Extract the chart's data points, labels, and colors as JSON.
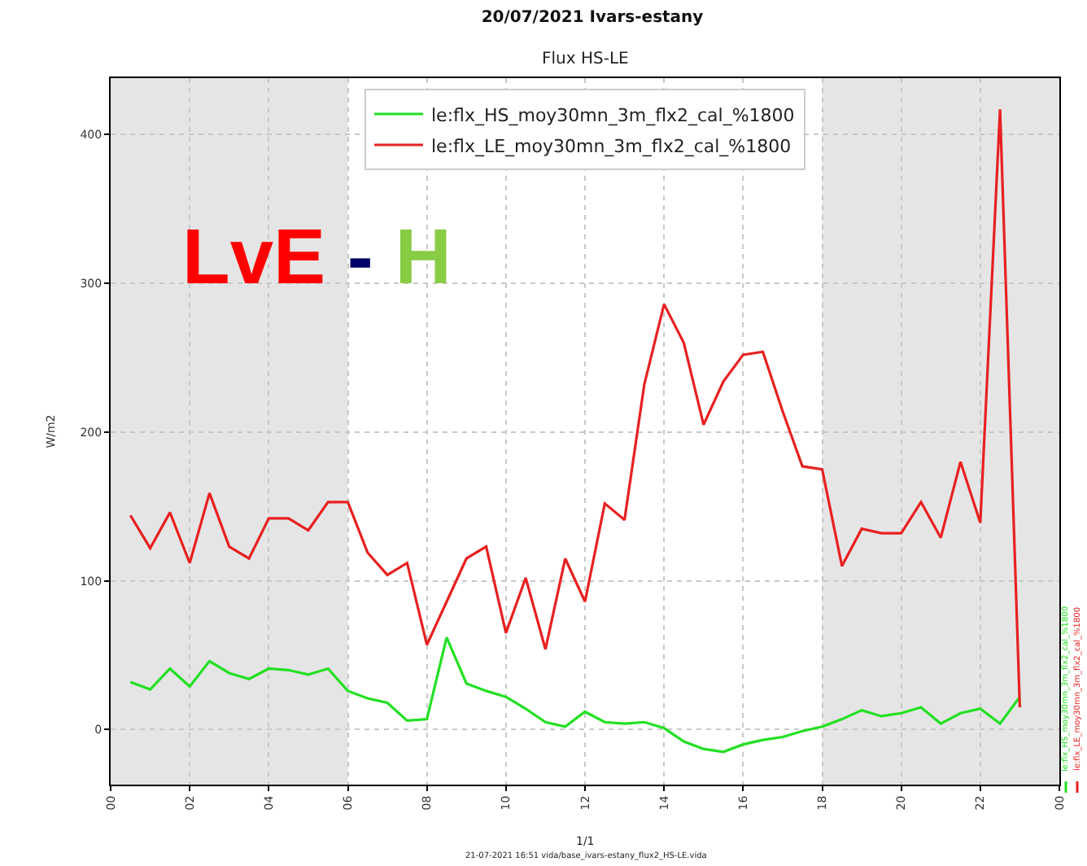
{
  "chart_data": {
    "type": "line",
    "title": "20/07/2021 Ivars-estany",
    "subtitle": "Flux HS-LE",
    "ylabel": "W/m2",
    "x": [
      0.5,
      1,
      1.5,
      2,
      2.5,
      3,
      3.5,
      4,
      4.5,
      5,
      5.5,
      6,
      6.5,
      7,
      7.5,
      8,
      8.5,
      9,
      9.5,
      10,
      10.5,
      11,
      11.5,
      12,
      12.5,
      13,
      13.5,
      14,
      14.5,
      15,
      15.5,
      16,
      16.5,
      17,
      17.5,
      18,
      18.5,
      19,
      19.5,
      20,
      20.5,
      21,
      21.5,
      22,
      22.5,
      23
    ],
    "series": [
      {
        "name": "le:flx_HS_moy30mn_3m_flx2_cal_%1800",
        "color": "#22e022",
        "values": [
          32,
          27,
          41,
          29,
          46,
          38,
          34,
          41,
          40,
          37,
          41,
          26,
          21,
          18,
          6,
          7,
          62,
          31,
          26,
          22,
          14,
          5,
          2,
          12,
          5,
          4,
          5,
          1,
          -8,
          -13,
          -15,
          -10,
          -7,
          -5,
          -1,
          2,
          7,
          13,
          9,
          11,
          15,
          4,
          11,
          14,
          4,
          22
        ]
      },
      {
        "name": "le:flx_LE_moy30mn_3m_flx2_cal_%1800",
        "color": "#e82020",
        "values": [
          144,
          122,
          146,
          112,
          159,
          123,
          115,
          142,
          142,
          134,
          153,
          153,
          119,
          104,
          112,
          57,
          86,
          115,
          123,
          65,
          102,
          54,
          115,
          86,
          152,
          141,
          232,
          286,
          260,
          205,
          234,
          252,
          254,
          214,
          177,
          175,
          110,
          135,
          132,
          132,
          153,
          129,
          180,
          139,
          417,
          15
        ]
      }
    ],
    "xlim": [
      0,
      24
    ],
    "xticks": [
      {
        "value": 0,
        "label": "00"
      },
      {
        "value": 2,
        "label": "02"
      },
      {
        "value": 4,
        "label": "04"
      },
      {
        "value": 6,
        "label": "06"
      },
      {
        "value": 8,
        "label": "08"
      },
      {
        "value": 10,
        "label": "10"
      },
      {
        "value": 12,
        "label": "12"
      },
      {
        "value": 14,
        "label": "14"
      },
      {
        "value": 16,
        "label": "16"
      },
      {
        "value": 18,
        "label": "18"
      },
      {
        "value": 20,
        "label": "20"
      },
      {
        "value": 22,
        "label": "22"
      },
      {
        "value": 24,
        "label": "00"
      }
    ],
    "ylim": [
      -37,
      438
    ],
    "yticks": [
      0,
      100,
      200,
      300,
      400
    ],
    "bands": [
      {
        "axis": "x",
        "from": 0,
        "to": 6,
        "color": "#e5e5e5"
      },
      {
        "axis": "x",
        "from": 18,
        "to": 24,
        "color": "#e5e5e5"
      }
    ],
    "grid": true,
    "legend": "top",
    "annotations": [
      "LvE - H",
      "1/1",
      "21-07-2021 16:51 vida/base_ivars-estany_flux2_HS-LE.vida"
    ]
  }
}
